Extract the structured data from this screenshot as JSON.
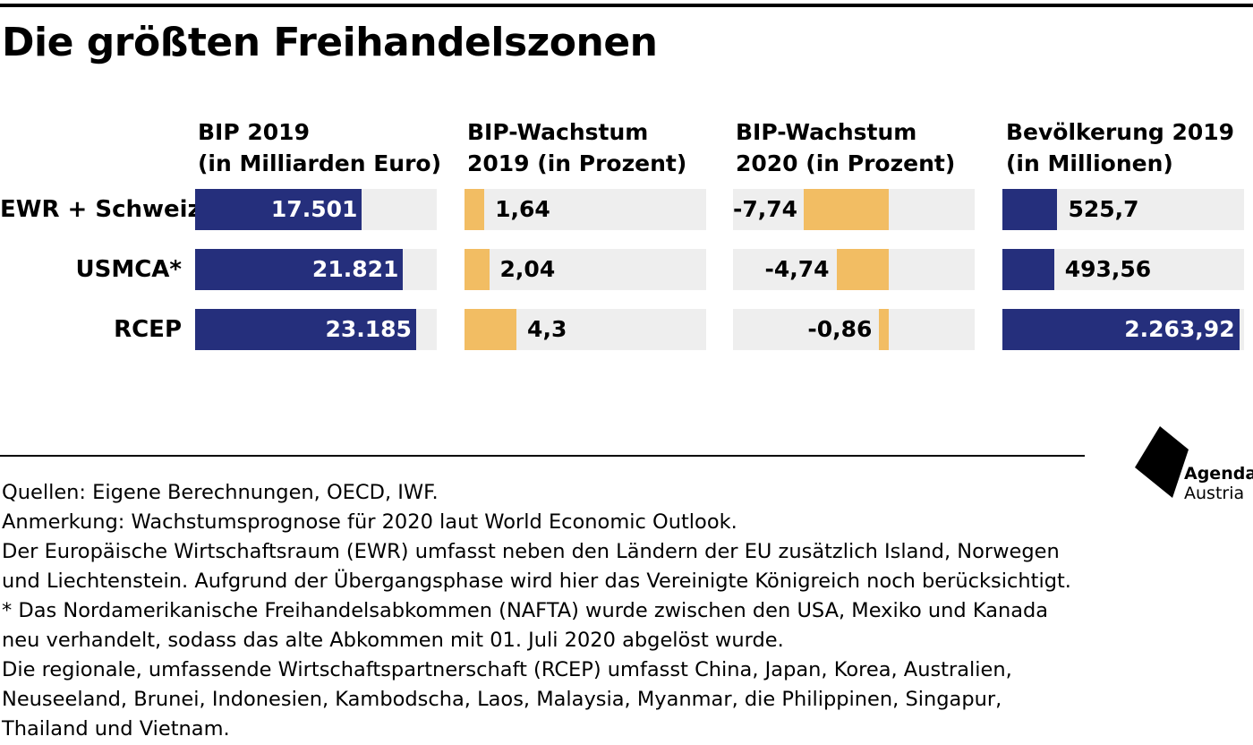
{
  "title": "Die größten Freihandelszonen",
  "chart_data": [
    {
      "type": "bar",
      "title_lines": [
        "BIP 2019",
        "(in Milliarden Euro)"
      ],
      "categories": [
        "EWR + Schweiz",
        "USMCA*",
        "RCEP"
      ],
      "values": [
        17501,
        21821,
        23185
      ],
      "value_labels": [
        "17.501",
        "21.821",
        "23.185"
      ],
      "xlim": [
        0,
        25350
      ],
      "color": "#252F7C",
      "label_color": "#FFFFFF"
    },
    {
      "type": "bar",
      "title_lines": [
        "BIP-Wachstum",
        "2019 (in Prozent)"
      ],
      "categories": [
        "EWR + Schweiz",
        "USMCA*",
        "RCEP"
      ],
      "values": [
        1.64,
        2.04,
        4.3
      ],
      "value_labels": [
        "1,64",
        "2,04",
        "4,3"
      ],
      "xlim": [
        0,
        20
      ],
      "color": "#F2BD63",
      "label_color": "#000000"
    },
    {
      "type": "bar",
      "title_lines": [
        "BIP-Wachstum",
        "2020 (in Prozent)"
      ],
      "categories": [
        "EWR + Schweiz",
        "USMCA*",
        "RCEP"
      ],
      "values": [
        -7.74,
        -4.74,
        -0.86
      ],
      "value_labels": [
        "-7,74",
        "-4,74",
        "-0,86"
      ],
      "xlim": [
        -14.6,
        7.3
      ],
      "color": "#F2BD63",
      "label_color": "#000000"
    },
    {
      "type": "bar",
      "title_lines": [
        "Bevölkerung 2019",
        "(in  Millionen)"
      ],
      "categories": [
        "EWR + Schweiz",
        "USMCA*",
        "RCEP"
      ],
      "values": [
        525.7,
        493.56,
        2263.92
      ],
      "value_labels": [
        "525,7",
        "493,56",
        "2.263,92"
      ],
      "xlim": [
        0,
        2310
      ],
      "color": "#252F7C",
      "label_color": "#FFFFFF"
    }
  ],
  "notes": [
    "Quellen: Eigene Berechnungen, OECD, IWF.",
    "Anmerkung: Wachstumsprognose für 2020 laut World Economic Outlook.",
    "Der Europäische Wirtschaftsraum (EWR) umfasst neben den Ländern der EU zusätzlich Island, Norwegen",
    "und Liechtenstein. Aufgrund der Übergangsphase wird hier das Vereinigte Königreich noch berücksichtigt.",
    "* Das Nordamerikanische Freihandelsabkommen (NAFTA) wurde zwischen den USA, Mexiko und Kanada",
    "neu verhandelt, sodass das alte Abkommen mit 01. Juli 2020 abgelöst wurde.",
    "Die regionale, umfassende Wirtschaftspartnerschaft (RCEP) umfasst China, Japan, Korea, Australien,",
    "Neuseeland, Brunei, Indonesien, Kambodscha, Laos, Malaysia, Myanmar, die Philippinen, Singapur,",
    "Thailand und Vietnam."
  ],
  "logo": {
    "line1": "Agenda",
    "line2": "Austria"
  }
}
